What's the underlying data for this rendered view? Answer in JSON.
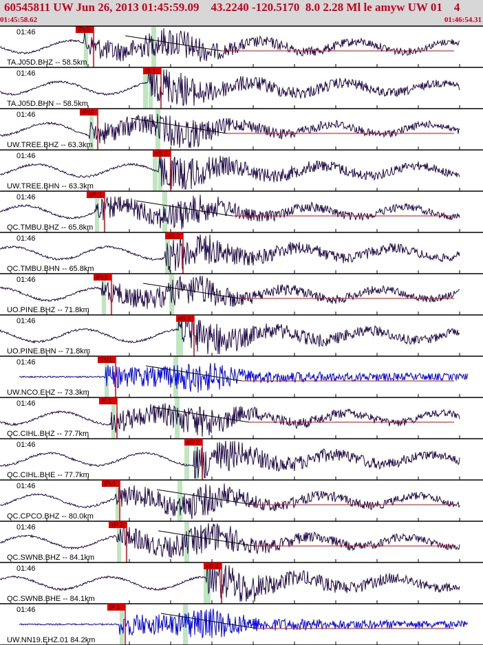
{
  "header": {
    "title": "60545811 UW Jun 26, 2013 01:45:59.09    43.2240 -120.5170  8.0 2.28 Ml le amyw UW 01    4",
    "start_time": "01:45:58.62",
    "end_time": "01:46:54.31"
  },
  "colors": {
    "header_bg": "#d7d7d7",
    "header_text": "#c8001e",
    "trace_default": "#200a4a",
    "trace_ehz": "#0000ee",
    "pick": "#e00000",
    "pick_window": "#bfe6bf",
    "separator": "#000000"
  },
  "chart_data": {
    "type": "seismogram",
    "time_range": [
      "01:45:58.62",
      "01:46:54.31"
    ],
    "traces": [
      {
        "label": "TA.J05D.BHZ -- 58.5km",
        "time_tick": "01:46",
        "pick": "iPc0",
        "pick_type": "P",
        "color": "trace_default"
      },
      {
        "label": "TA.J05D.BHN -- 58.5km",
        "time_tick": "01:46",
        "pick": "iS 1",
        "pick_type": "S",
        "color": "trace_default"
      },
      {
        "label": "UW.TREE.BHZ -- 63.3km",
        "time_tick": "01:46",
        "pick": "iPc0",
        "pick_type": "P",
        "color": "trace_default"
      },
      {
        "label": "UW.TREE.BHN -- 63.3km",
        "time_tick": "01:46",
        "pick": "eS 2",
        "pick_type": "S",
        "color": "trace_default"
      },
      {
        "label": "QC.TMBU.BHZ -- 65.8km",
        "time_tick": "01:46",
        "pick": "eP 2",
        "pick_type": "P",
        "color": "trace_default"
      },
      {
        "label": "QC.TMBU.BHN -- 65.8km",
        "time_tick": "01:46",
        "pick": "eS 2",
        "pick_type": "S",
        "color": "trace_default"
      },
      {
        "label": "UO.PINE.BHZ -- 71.8km",
        "time_tick": "01:46",
        "pick": "iPc1",
        "pick_type": "P",
        "color": "trace_default"
      },
      {
        "label": "UO.PINE.BHN -- 71.8km",
        "time_tick": "01:46",
        "pick": "eS 2",
        "pick_type": "S",
        "color": "trace_default"
      },
      {
        "label": "UW.NCO.EHZ -- 73.3km",
        "time_tick": "01:46",
        "pick": "iPd1",
        "pick_type": "P",
        "color": "trace_ehz"
      },
      {
        "label": "QC.CIHL.BHZ -- 77.7km",
        "time_tick": "01:46",
        "pick": "iP 1",
        "pick_type": "P",
        "color": "trace_default"
      },
      {
        "label": "QC.CIHL.BHE -- 77.7km",
        "time_tick": "01:46",
        "pick": "eS 2",
        "pick_type": "S",
        "color": "trace_default"
      },
      {
        "label": "QC.CPCO.BHZ -- 80.0km",
        "time_tick": "01:46",
        "pick": "iPc1",
        "pick_type": "P",
        "color": "trace_default"
      },
      {
        "label": "QC.SWNB.BHZ -- 84.1km",
        "time_tick": "01:46",
        "pick": "eP 2",
        "pick_type": "P",
        "color": "trace_default"
      },
      {
        "label": "QC.SWNB.BHE -- 84.1km",
        "time_tick": "01:46",
        "pick": "eS 2",
        "pick_type": "S",
        "color": "trace_default"
      },
      {
        "label": "UW.NN19.EHZ.01 84.2km",
        "time_tick": "01:46",
        "pick": "iP 1",
        "pick_type": "P",
        "color": "trace_ehz"
      }
    ]
  }
}
